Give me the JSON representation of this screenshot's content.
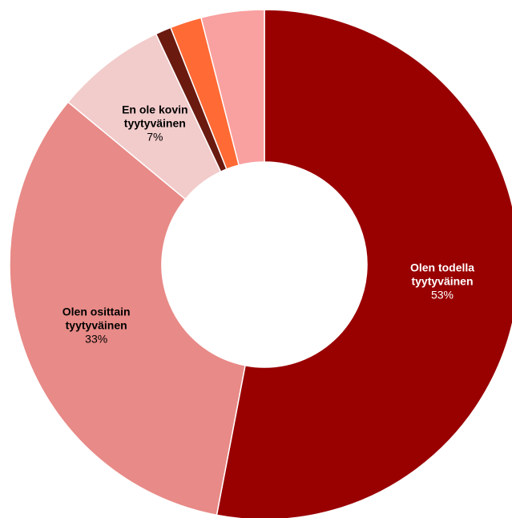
{
  "chart_data": {
    "type": "donut",
    "categories": [
      "Olen todella tyytyväinen",
      "Olen osittain tyytyväinen",
      "En ole kovin tyytyväinen",
      null,
      null,
      null
    ],
    "values": [
      53,
      33,
      7,
      1,
      2,
      4
    ],
    "value_labels": [
      "53%",
      "33%",
      "7%",
      null,
      null,
      null
    ],
    "colors": [
      "#990000",
      "#e88a87",
      "#f2cbcb",
      "#6b1a10",
      "#ff6a35",
      "#f9a0a0"
    ]
  }
}
